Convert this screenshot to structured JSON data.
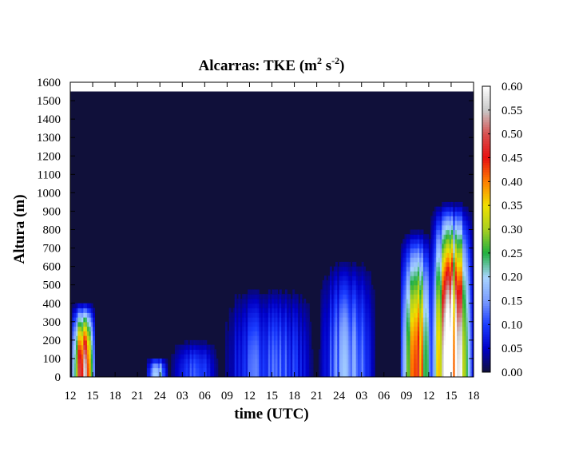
{
  "chart_data": {
    "type": "heatmap",
    "title": {
      "prefix": "Alcarras: TKE (m",
      "sup1": "2",
      "mid": " s",
      "sup2": "-2",
      "suffix": ")"
    },
    "xlabel": "time (UTC)",
    "ylabel": "Altura (m)",
    "x_tick_labels": [
      "12",
      "15",
      "18",
      "21",
      "24",
      "03",
      "06",
      "09",
      "12",
      "15",
      "18",
      "21",
      "24",
      "03",
      "06",
      "09",
      "12",
      "15",
      "18"
    ],
    "x_range_hours": [
      0,
      54
    ],
    "ylim": [
      0,
      1600
    ],
    "y_ticks": [
      0,
      100,
      200,
      300,
      400,
      500,
      600,
      700,
      800,
      900,
      1000,
      1100,
      1200,
      1300,
      1400,
      1500,
      1600
    ],
    "data_top_height_m": 1550,
    "colorbar": {
      "range": [
        0,
        0.6
      ],
      "ticks": [
        "0.00",
        "0.05",
        "0.10",
        "0.15",
        "0.20",
        "0.25",
        "0.30",
        "0.35",
        "0.40",
        "0.45",
        "0.50",
        "0.55",
        "0.60"
      ],
      "colors": [
        "#10103a",
        "#0000c8",
        "#1a3cff",
        "#7a9cff",
        "#a8d4ff",
        "#20b040",
        "#a8d020",
        "#f0e000",
        "#ff8000",
        "#e81010",
        "#d85050",
        "#c8c8c8",
        "#ffffff"
      ]
    },
    "background_color": "#10103a",
    "tke_features": [
      {
        "t_start": 0,
        "t_end": 3.2,
        "z_top": 400,
        "peak": 0.5
      },
      {
        "t_start": 10,
        "t_end": 13,
        "z_top": 100,
        "peak": 0.2
      },
      {
        "t_start": 13,
        "t_end": 20,
        "z_top": 200,
        "peak": 0.1
      },
      {
        "t_start": 20,
        "t_end": 33,
        "z_top": 500,
        "peak": 0.12
      },
      {
        "t_start": 33,
        "t_end": 41,
        "z_top": 650,
        "peak": 0.15
      },
      {
        "t_start": 44,
        "t_end": 48.5,
        "z_top": 800,
        "peak": 0.42
      },
      {
        "t_start": 48,
        "t_end": 54,
        "z_top": 950,
        "peak": 0.58
      }
    ]
  }
}
